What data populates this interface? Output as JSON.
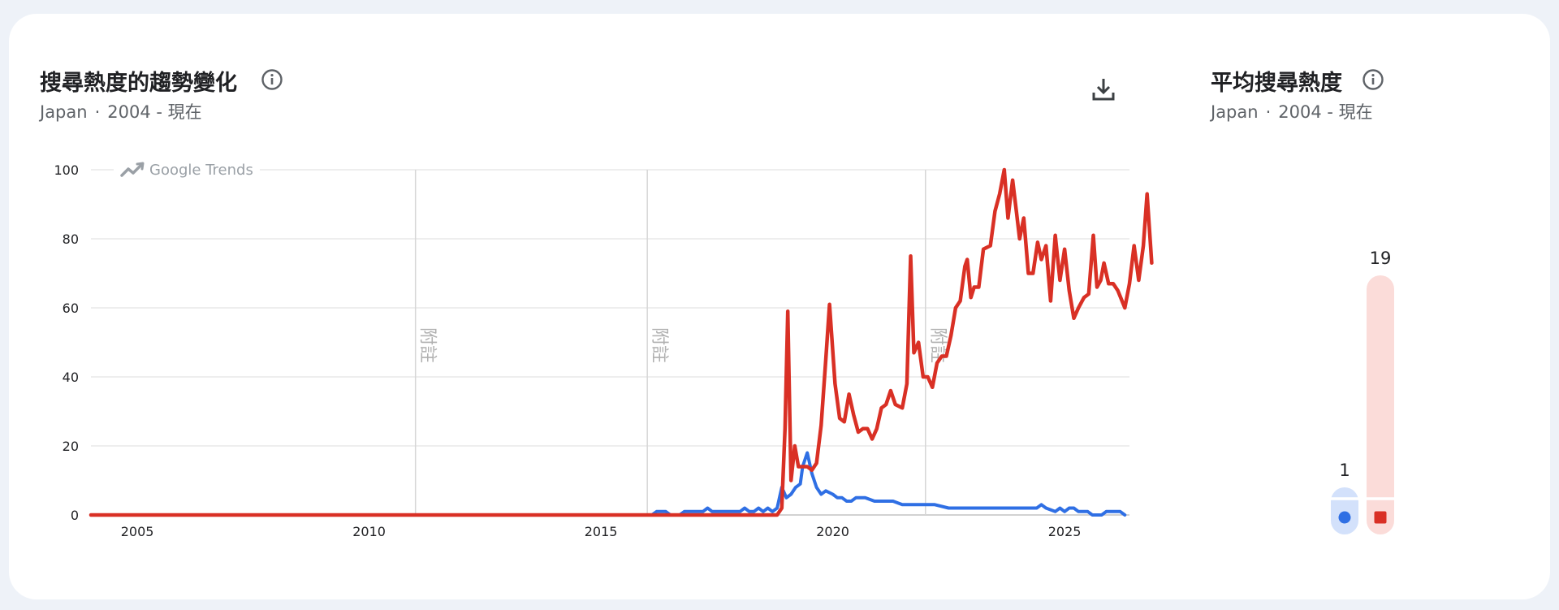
{
  "main_panel": {
    "title": "搜尋熱度的趨勢變化",
    "region": "Japan",
    "separator": "·",
    "period": "2004 - 現在",
    "watermark": "Google Trends",
    "note_label": "附註"
  },
  "average_panel": {
    "title": "平均搜尋熱度",
    "region": "Japan",
    "separator": "·",
    "period": "2004 - 現在"
  },
  "colors": {
    "blue": "#2f6fe4",
    "red": "#d93025",
    "grid": "#e3e3e3",
    "axis": "#c4c4c4"
  },
  "chart_data": [
    {
      "type": "line",
      "xlim": [
        2004,
        2026.4
      ],
      "ylim": [
        0,
        100
      ],
      "yticks": [
        0,
        20,
        40,
        60,
        80,
        100
      ],
      "xticks": [
        2005,
        2010,
        2015,
        2020,
        2025
      ],
      "grid": true,
      "annotations": [
        {
          "x": 2011.0,
          "label": "附註"
        },
        {
          "x": 2016.0,
          "label": "附註"
        },
        {
          "x": 2022.0,
          "label": "附註"
        }
      ],
      "series": [
        {
          "color": "blue",
          "points": [
            [
              2004.0,
              0
            ],
            [
              2016.1,
              0
            ],
            [
              2016.2,
              1
            ],
            [
              2016.4,
              1
            ],
            [
              2016.5,
              0
            ],
            [
              2016.7,
              0
            ],
            [
              2016.8,
              1
            ],
            [
              2017.2,
              1
            ],
            [
              2017.3,
              2
            ],
            [
              2017.4,
              1
            ],
            [
              2018.0,
              1
            ],
            [
              2018.1,
              2
            ],
            [
              2018.2,
              1
            ],
            [
              2018.3,
              1
            ],
            [
              2018.4,
              2
            ],
            [
              2018.5,
              1
            ],
            [
              2018.6,
              2
            ],
            [
              2018.7,
              1
            ],
            [
              2018.8,
              2
            ],
            [
              2018.9,
              8
            ],
            [
              2019.0,
              5
            ],
            [
              2019.1,
              6
            ],
            [
              2019.2,
              8
            ],
            [
              2019.3,
              9
            ],
            [
              2019.35,
              14
            ],
            [
              2019.45,
              18
            ],
            [
              2019.55,
              12
            ],
            [
              2019.65,
              8
            ],
            [
              2019.75,
              6
            ],
            [
              2019.85,
              7
            ],
            [
              2020.0,
              6
            ],
            [
              2020.1,
              5
            ],
            [
              2020.2,
              5
            ],
            [
              2020.3,
              4
            ],
            [
              2020.4,
              4
            ],
            [
              2020.5,
              5
            ],
            [
              2020.7,
              5
            ],
            [
              2020.9,
              4
            ],
            [
              2021.1,
              4
            ],
            [
              2021.3,
              4
            ],
            [
              2021.5,
              3
            ],
            [
              2021.7,
              3
            ],
            [
              2022.0,
              3
            ],
            [
              2022.2,
              3
            ],
            [
              2022.5,
              2
            ],
            [
              2023.0,
              2
            ],
            [
              2024.0,
              2
            ],
            [
              2024.4,
              2
            ],
            [
              2024.5,
              3
            ],
            [
              2024.6,
              2
            ],
            [
              2024.8,
              1
            ],
            [
              2024.9,
              2
            ],
            [
              2025.0,
              1
            ],
            [
              2025.1,
              2
            ],
            [
              2025.2,
              2
            ],
            [
              2025.3,
              1
            ],
            [
              2025.5,
              1
            ],
            [
              2025.6,
              0
            ],
            [
              2025.8,
              0
            ],
            [
              2025.9,
              1
            ],
            [
              2026.2,
              1
            ],
            [
              2026.3,
              0
            ]
          ]
        },
        {
          "color": "red",
          "points": [
            [
              2004.0,
              0
            ],
            [
              2018.8,
              0
            ],
            [
              2018.9,
              2
            ],
            [
              2018.97,
              25
            ],
            [
              2019.03,
              59
            ],
            [
              2019.1,
              10
            ],
            [
              2019.18,
              20
            ],
            [
              2019.26,
              14
            ],
            [
              2019.45,
              14
            ],
            [
              2019.55,
              13
            ],
            [
              2019.65,
              15
            ],
            [
              2019.75,
              26
            ],
            [
              2019.85,
              45
            ],
            [
              2019.93,
              61
            ],
            [
              2020.05,
              38
            ],
            [
              2020.15,
              28
            ],
            [
              2020.25,
              27
            ],
            [
              2020.35,
              35
            ],
            [
              2020.45,
              29
            ],
            [
              2020.55,
              24
            ],
            [
              2020.65,
              25
            ],
            [
              2020.75,
              25
            ],
            [
              2020.85,
              22
            ],
            [
              2020.95,
              25
            ],
            [
              2021.05,
              31
            ],
            [
              2021.15,
              32
            ],
            [
              2021.25,
              36
            ],
            [
              2021.35,
              32
            ],
            [
              2021.5,
              31
            ],
            [
              2021.6,
              38
            ],
            [
              2021.68,
              75
            ],
            [
              2021.75,
              47
            ],
            [
              2021.85,
              50
            ],
            [
              2021.95,
              40
            ],
            [
              2022.05,
              40
            ],
            [
              2022.15,
              37
            ],
            [
              2022.25,
              44
            ],
            [
              2022.35,
              46
            ],
            [
              2022.45,
              46
            ],
            [
              2022.55,
              52
            ],
            [
              2022.65,
              60
            ],
            [
              2022.75,
              62
            ],
            [
              2022.85,
              72
            ],
            [
              2022.9,
              74
            ],
            [
              2022.98,
              63
            ],
            [
              2023.05,
              66
            ],
            [
              2023.15,
              66
            ],
            [
              2023.25,
              77
            ],
            [
              2023.4,
              78
            ],
            [
              2023.5,
              88
            ],
            [
              2023.6,
              93
            ],
            [
              2023.7,
              100
            ],
            [
              2023.78,
              86
            ],
            [
              2023.88,
              97
            ],
            [
              2023.96,
              88
            ],
            [
              2024.03,
              80
            ],
            [
              2024.12,
              86
            ],
            [
              2024.22,
              70
            ],
            [
              2024.32,
              70
            ],
            [
              2024.42,
              79
            ],
            [
              2024.5,
              74
            ],
            [
              2024.6,
              78
            ],
            [
              2024.7,
              62
            ],
            [
              2024.8,
              81
            ],
            [
              2024.9,
              68
            ],
            [
              2025.0,
              77
            ],
            [
              2025.1,
              65
            ],
            [
              2025.2,
              57
            ],
            [
              2025.3,
              60
            ],
            [
              2025.42,
              63
            ],
            [
              2025.52,
              64
            ],
            [
              2025.62,
              81
            ],
            [
              2025.7,
              66
            ],
            [
              2025.78,
              68
            ],
            [
              2025.85,
              73
            ],
            [
              2025.95,
              67
            ],
            [
              2026.05,
              67
            ],
            [
              2026.15,
              65
            ],
            [
              2026.3,
              60
            ],
            [
              2026.4,
              67
            ],
            [
              2026.5,
              78
            ],
            [
              2026.6,
              68
            ],
            [
              2026.7,
              78
            ],
            [
              2026.78,
              93
            ],
            [
              2026.88,
              73
            ]
          ]
        }
      ]
    },
    {
      "type": "bar",
      "ylim": [
        0,
        19
      ],
      "series": [
        {
          "color": "blue",
          "value": 1,
          "value_label": "1"
        },
        {
          "color": "red",
          "value": 19,
          "value_label": "19"
        }
      ]
    }
  ]
}
